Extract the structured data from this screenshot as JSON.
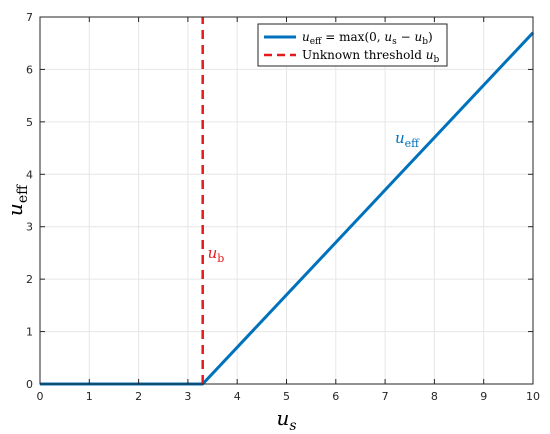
{
  "chart_data": {
    "type": "line",
    "xlabel": {
      "main": "u",
      "sub": "s"
    },
    "ylabel": {
      "main": "u",
      "sub": "eff"
    },
    "xlim": [
      0,
      10
    ],
    "ylim": [
      0,
      7
    ],
    "xticks": [
      0,
      1,
      2,
      3,
      4,
      5,
      6,
      7,
      8,
      9,
      10
    ],
    "yticks": [
      0,
      1,
      2,
      3,
      4,
      5,
      6,
      7
    ],
    "grid": true,
    "legend_position": "top-right",
    "series": [
      {
        "name": "u_eff = max(0, u_s − u_b)",
        "color": "#0072BD",
        "style": "solid",
        "x": [
          0,
          3.3,
          10
        ],
        "y": [
          0,
          0,
          6.7
        ]
      },
      {
        "name": "Unknown threshold u_b",
        "color": "#E41A1C",
        "style": "dashed",
        "x": [
          3.3,
          3.3
        ],
        "y": [
          0,
          7
        ]
      }
    ],
    "annotations": [
      {
        "text": "u_eff",
        "main": "u",
        "sub": "eff",
        "x": 7.2,
        "y": 4.6,
        "color": "#0072BD"
      },
      {
        "text": "u_b",
        "main": "u",
        "sub": "b",
        "x": 3.4,
        "y": 2.4,
        "color": "#E41A1C"
      }
    ],
    "legend": [
      {
        "text": "u_eff = max(0, u_s − u_b)",
        "parts": [
          "u",
          "eff",
          " = max(0, ",
          "u",
          "s",
          " − ",
          "u",
          "b",
          ")"
        ]
      },
      {
        "text": "Unknown threshold u_b",
        "parts": [
          "Unknown threshold ",
          "u",
          "b"
        ]
      }
    ]
  }
}
